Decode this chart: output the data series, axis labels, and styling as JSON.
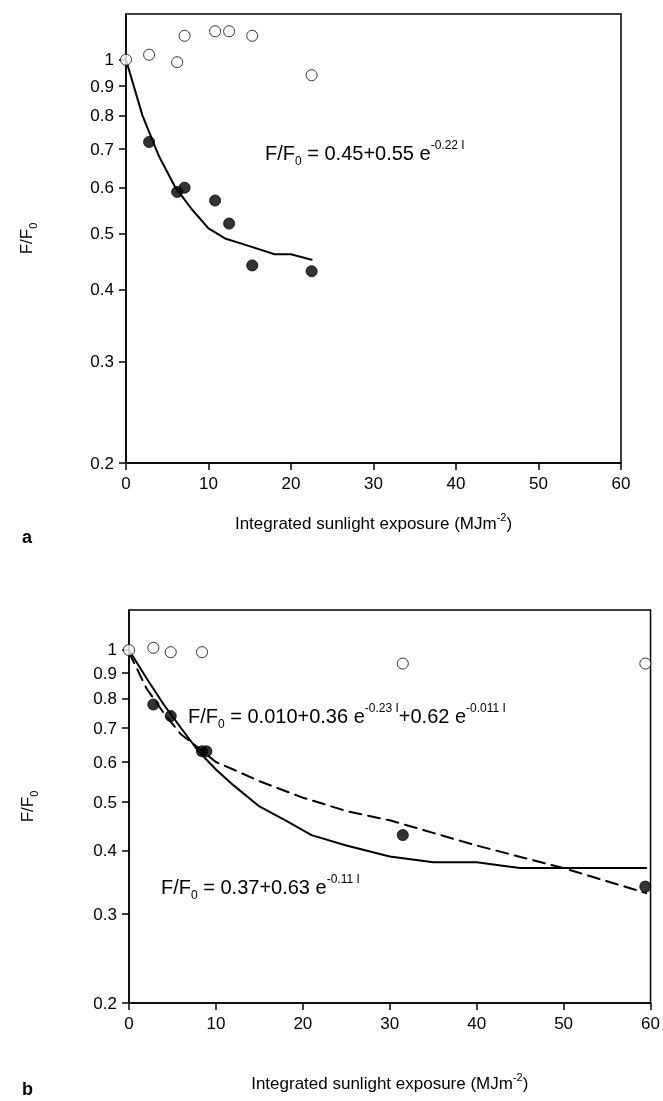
{
  "chart_data": [
    {
      "type": "scatter",
      "xlabel": "Integrated sunlight exposure (MJm$^{-2}$)",
      "ylabel": "F/F$_{0}$",
      "log": "y",
      "grid": false,
      "marker": "circle",
      "xlim": [
        0,
        60
      ],
      "xticks": [
        0,
        10,
        20,
        30,
        40,
        50,
        60
      ],
      "ylim": [
        0.2,
        1.2
      ],
      "yticks": [
        0.2,
        0.3,
        0.4,
        0.5,
        0.6,
        0.7,
        0.8,
        0.9,
        1
      ],
      "series": [
        {
          "type": "scatter",
          "color": "#ffffff",
          "x": [
            0,
            2.8,
            6.2,
            7.1,
            10.8,
            12.5,
            15.3,
            22.5
          ],
          "values": [
            1.0,
            1.02,
            0.99,
            1.1,
            1.12,
            1.12,
            1.1,
            0.94
          ]
        },
        {
          "type": "scatter",
          "color": "#000000",
          "x": [
            2.8,
            6.2,
            7.1,
            10.8,
            12.5,
            15.3,
            22.5
          ],
          "values": [
            0.72,
            0.59,
            0.6,
            0.57,
            0.52,
            0.44,
            0.43
          ]
        },
        {
          "type": "line",
          "color": "#000000",
          "line_style": "solid",
          "marker": "none",
          "x": [
            0,
            2,
            4,
            6,
            8,
            10,
            12,
            14,
            16,
            18,
            20,
            22.5
          ],
          "values": [
            1.0,
            0.8,
            0.68,
            0.6,
            0.55,
            0.51,
            0.49,
            0.48,
            0.47,
            0.46,
            0.46,
            0.45
          ]
        }
      ],
      "annotations": [
        "F/F$_{0}$ = 0.45+0.55 e$^{-0.22 I}$",
        "a"
      ]
    },
    {
      "type": "scatter",
      "xlabel": "Integrated sunlight exposure (MJm$^{-2}$)",
      "ylabel": "F/F$_{0}$",
      "log": "y",
      "grid": false,
      "marker": "circle",
      "xlim": [
        0,
        60
      ],
      "xticks": [
        0,
        10,
        20,
        30,
        40,
        50,
        60
      ],
      "ylim": [
        0.2,
        1.2
      ],
      "yticks": [
        0.2,
        0.3,
        0.4,
        0.5,
        0.6,
        0.7,
        0.8,
        0.9,
        1
      ],
      "series": [
        {
          "type": "line",
          "color": "#000000",
          "line_style": "solid",
          "marker": "none",
          "x": [
            0,
            2,
            4,
            6,
            8,
            10,
            12,
            15,
            18,
            21,
            25,
            30,
            35,
            40,
            45,
            50,
            59.5
          ],
          "values": [
            1.0,
            0.88,
            0.78,
            0.7,
            0.63,
            0.58,
            0.54,
            0.49,
            0.46,
            0.43,
            0.41,
            0.39,
            0.38,
            0.38,
            0.37,
            0.37,
            0.37
          ]
        },
        {
          "type": "line",
          "color": "#000000",
          "line_style": "dashed",
          "marker": "none",
          "x": [
            0,
            2,
            4,
            6,
            8,
            10,
            12,
            15,
            20,
            25,
            30,
            40,
            50,
            59.5
          ],
          "values": [
            0.99,
            0.84,
            0.75,
            0.68,
            0.64,
            0.6,
            0.58,
            0.55,
            0.51,
            0.48,
            0.46,
            0.41,
            0.37,
            0.33
          ]
        },
        {
          "type": "scatter",
          "color": "#ffffff",
          "x": [
            0,
            2.8,
            4.8,
            8.4,
            31.5,
            59.4
          ],
          "values": [
            1.0,
            1.01,
            0.99,
            0.99,
            0.94,
            0.94
          ]
        },
        {
          "type": "scatter",
          "color": "#000000",
          "x": [
            2.8,
            4.8,
            8.4,
            8.9,
            31.5,
            59.4
          ],
          "values": [
            0.78,
            0.74,
            0.63,
            0.63,
            0.43,
            0.34
          ]
        }
      ],
      "annotations": [
        "F/F$_{0}$ = 0.010+0.36 e$^{-0.23 I}$+0.62 e$^{-0.011 I}$",
        "F/F$_{0}$ = 0.37+0.63 e$^{-0.11 I}$",
        "b"
      ]
    }
  ]
}
